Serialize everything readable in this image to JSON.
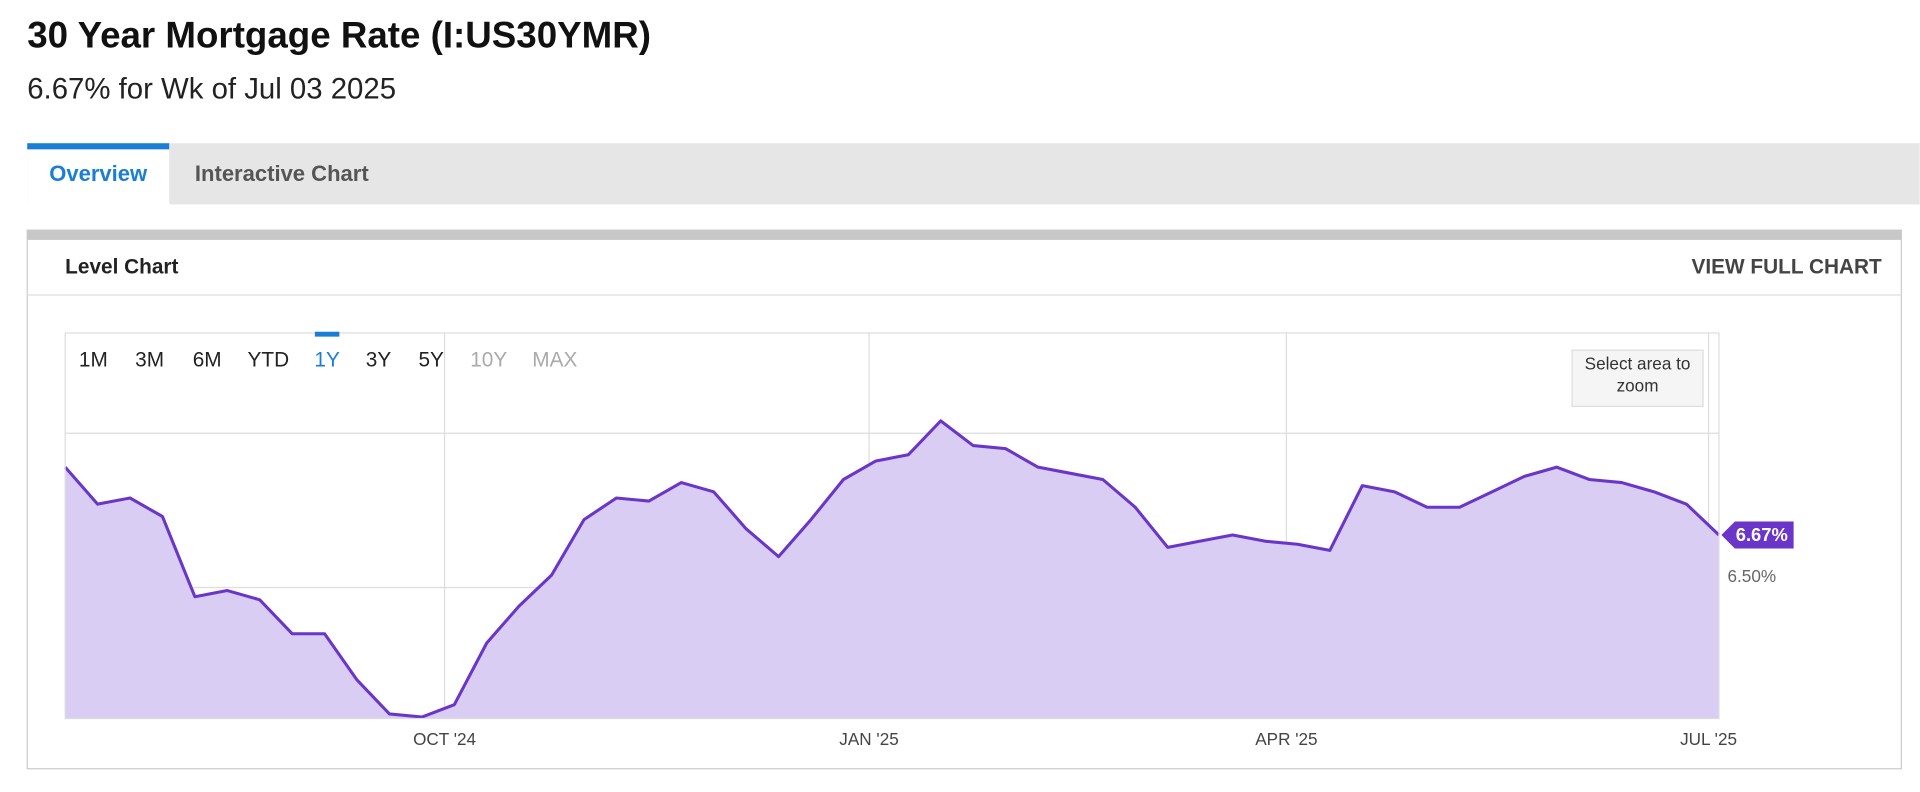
{
  "header": {
    "title": "30 Year Mortgage Rate (I:US30YMR)",
    "subtitle": "6.67% for Wk of Jul 03 2025"
  },
  "tabs": [
    "Overview",
    "Interactive Chart"
  ],
  "active_tab": 0,
  "panel": {
    "title": "Level Chart",
    "link": "VIEW FULL CHART"
  },
  "range_buttons": [
    "1M",
    "3M",
    "6M",
    "YTD",
    "1Y",
    "3Y",
    "5Y",
    "10Y",
    "MAX"
  ],
  "active_range": 4,
  "disabled_ranges": [
    7,
    8
  ],
  "zoom_hint": "Select area to zoom",
  "chart_data": {
    "type": "area",
    "color": "#6a35c9",
    "fill": "#d9cdf3",
    "values": [
      6.89,
      6.77,
      6.79,
      6.73,
      6.47,
      6.49,
      6.46,
      6.35,
      6.35,
      6.2,
      6.09,
      6.08,
      6.12,
      6.32,
      6.44,
      6.54,
      6.72,
      6.79,
      6.78,
      6.84,
      6.81,
      6.69,
      6.6,
      6.72,
      6.85,
      6.91,
      6.93,
      7.04,
      6.96,
      6.95,
      6.89,
      6.87,
      6.85,
      6.76,
      6.63,
      6.65,
      6.67,
      6.65,
      6.64,
      6.62,
      6.83,
      6.81,
      6.76,
      6.76,
      6.81,
      6.86,
      6.89,
      6.85,
      6.84,
      6.81,
      6.77,
      6.67
    ],
    "value_labels": [
      null,
      null,
      null,
      null,
      null,
      null,
      null,
      null,
      null,
      null,
      null,
      null,
      null,
      null,
      null,
      null,
      null,
      null,
      null,
      null,
      null,
      null,
      null,
      null,
      null,
      null,
      null,
      null,
      null,
      null,
      null,
      null,
      null,
      null,
      null,
      null,
      null,
      null,
      null,
      null,
      null,
      null,
      null,
      null,
      null,
      null,
      null,
      null,
      null,
      null,
      null,
      "6.67%"
    ],
    "xlim": [
      0,
      51
    ],
    "xticks": [
      {
        "value": 11.7,
        "label": "OCT '24"
      },
      {
        "value": 24.79,
        "label": "JAN '25"
      },
      {
        "value": 37.66,
        "label": "APR '25"
      },
      {
        "value": 50.68,
        "label": "JUL '25"
      }
    ],
    "ylim": [
      6.075,
      7.325
    ],
    "yticks": [
      {
        "value": 6.5,
        "label": "6.50%"
      },
      {
        "value": 7,
        "label": null
      }
    ],
    "grid": true
  }
}
